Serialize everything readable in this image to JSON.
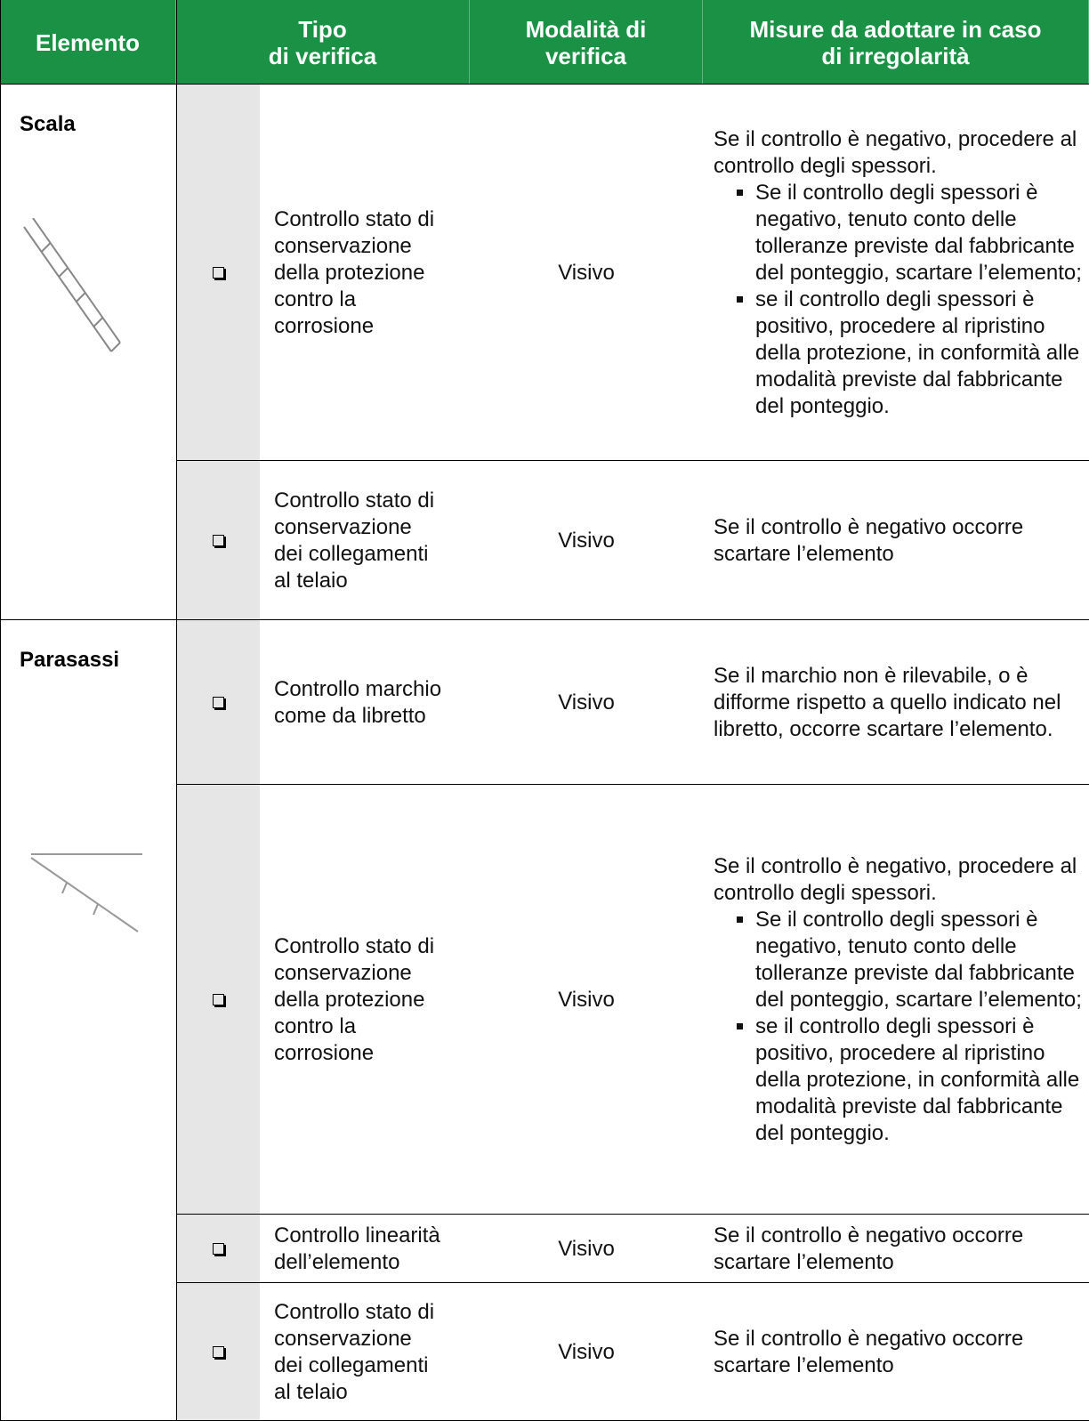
{
  "header": [
    "Elemento",
    "Tipo\ndi verifica",
    "Modalità di\nverifica",
    "Misure da adottare in caso\ndi irregolarità"
  ],
  "groups": [
    {
      "element": "Scala",
      "rows": [
        {
          "check": "Controllo stato di\nconservazione\ndella protezione\ncontro la\ncorrosione",
          "mode": "Visivo",
          "measure": {
            "text": "Se il controllo è negativo, procedere al controllo degli spessori.",
            "bullets": [
              "Se il controllo degli spessori è negativo, tenuto conto delle tolleranze previste dal fabbricante del ponteggio, scartare l’elemento;",
              "se il controllo degli spessori è positivo, procedere al ripristino della protezione, in conformità alle modalità previste dal fabbricante del ponteggio."
            ]
          }
        },
        {
          "check": "Controllo stato di\nconservazione\ndei collegamenti\nal telaio",
          "mode": "Visivo",
          "measure": {
            "text": "Se il controllo è negativo occorre scartare l’elemento"
          }
        }
      ]
    },
    {
      "element": "Parasassi",
      "rows": [
        {
          "check": "Controllo marchio\ncome da libretto",
          "mode": "Visivo",
          "measure": {
            "text": "Se il marchio non è rilevabile, o è difforme rispetto a quello indicato nel libretto, occorre scartare l’elemento."
          }
        },
        {
          "check": "Controllo stato di\nconservazione\ndella protezione\ncontro la\ncorrosione",
          "mode": "Visivo",
          "measure": {
            "text": "Se il controllo è negativo, procedere al controllo degli spessori.",
            "bullets": [
              "Se il controllo degli spessori è negativo, tenuto conto delle tolleranze previste dal fabbricante del ponteggio, scartare l’elemento;",
              "se il controllo degli spessori è positivo, procedere al ripristino della protezione, in conformità alle modalità previste dal fabbricante del ponteggio."
            ]
          }
        },
        {
          "check": "Controllo linearità\ndell’elemento",
          "mode": "Visivo",
          "measure": {
            "text": "Se il controllo è negativo occorre scartare l’elemento"
          }
        },
        {
          "check": "Controllo stato di\nconservazione\ndei collegamenti\nal telaio",
          "mode": "Visivo",
          "measure": {
            "text": "Se il controllo è negativo occorre scartare l’elemento"
          }
        }
      ]
    }
  ]
}
